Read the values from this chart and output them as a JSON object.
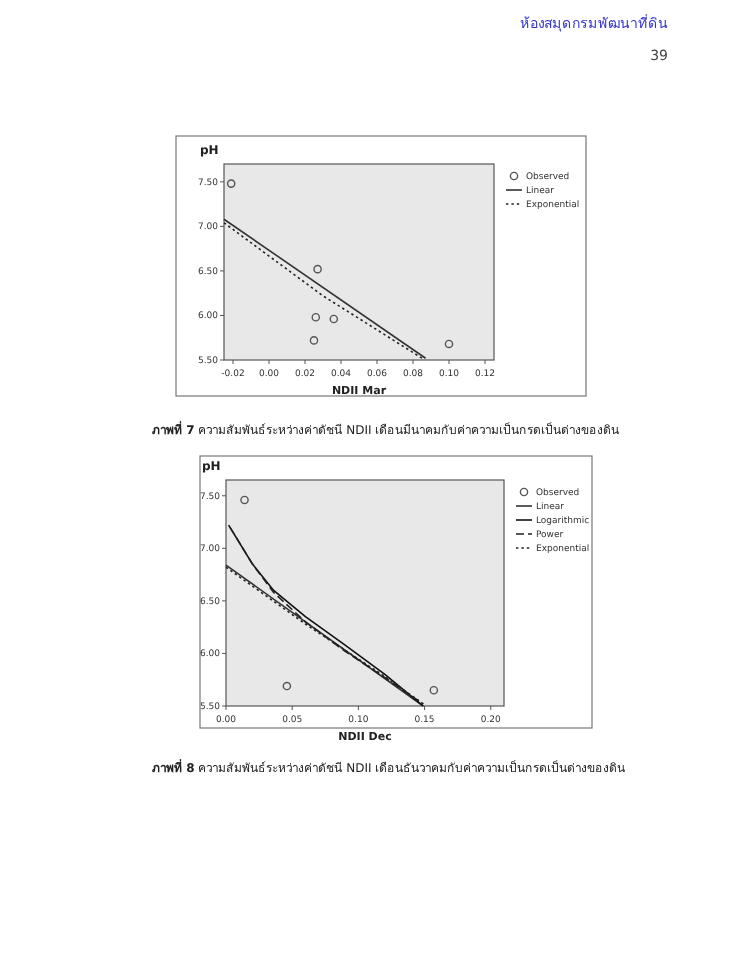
{
  "chart_data": [
    {
      "type": "scatter",
      "ylabel": "pH",
      "xlabel": "NDII Mar",
      "legend": "right",
      "annotations": [
        "ห้องสมุดกรมพัฒนาที่ดิน",
        "39",
        "ภาพที่ 7 ความสัมพันธ์ระหว่างค่าดัชนี NDII เดือนมีนาคมกับค่าความเป็นกรดเป็นด่างของดิน"
      ],
      "xlim": [
        -0.025,
        0.125
      ],
      "ylim": [
        5.5,
        7.7
      ],
      "xticks": [
        {
          "value": -0.02,
          "label": "-0.02"
        },
        {
          "value": 0,
          "label": "0.00"
        },
        {
          "value": 0.02,
          "label": "0.02"
        },
        {
          "value": 0.04,
          "label": "0.04"
        },
        {
          "value": 0.06,
          "label": "0.06"
        },
        {
          "value": 0.08,
          "label": "0.08"
        },
        {
          "value": 0.1,
          "label": "0.10"
        },
        {
          "value": 0.12,
          "label": "0.12"
        }
      ],
      "yticks": [
        {
          "value": 5.5,
          "label": "5.50"
        },
        {
          "value": 6,
          "label": "6.00"
        },
        {
          "value": 6.5,
          "label": "6.50"
        },
        {
          "value": 7,
          "label": "7.00"
        },
        {
          "value": 7.5,
          "label": "7.50"
        }
      ],
      "series": [
        {
          "name": "Observed",
          "marker": "circle",
          "color": "#555555",
          "x": [
            -0.021,
            0.027,
            0.026,
            0.036,
            0.025,
            0.1
          ],
          "values": [
            7.48,
            6.52,
            5.98,
            5.96,
            5.72,
            5.68
          ]
        },
        {
          "name": "Linear",
          "type": "line",
          "line_style": "solid",
          "color": "#333333",
          "x": [
            -0.025,
            0.087
          ],
          "values": [
            7.08,
            5.52
          ]
        },
        {
          "name": "Exponential",
          "type": "line",
          "line_style": "dotted",
          "color": "#222222",
          "x": [
            -0.025,
            0.03,
            0.085
          ],
          "values": [
            7.04,
            6.22,
            5.52
          ]
        }
      ]
    },
    {
      "type": "scatter",
      "ylabel": "pH",
      "xlabel": "NDII Dec",
      "legend": "right",
      "annotations": [
        "ภาพที่ 8 ความสัมพันธ์ระหว่างค่าดัชนี NDII เดือนธันวาคมกับค่าความเป็นกรดเป็นด่างของดิน"
      ],
      "xlim": [
        0,
        0.21
      ],
      "ylim": [
        5.5,
        7.65
      ],
      "xticks": [
        {
          "value": 0,
          "label": "0.00"
        },
        {
          "value": 0.05,
          "label": "0.05"
        },
        {
          "value": 0.1,
          "label": "0.10"
        },
        {
          "value": 0.15,
          "label": "0.15"
        },
        {
          "value": 0.2,
          "label": "0.20"
        }
      ],
      "yticks": [
        {
          "value": 5.5,
          "label": "5.50"
        },
        {
          "value": 6,
          "label": "6.00"
        },
        {
          "value": 6.5,
          "label": "6.50"
        },
        {
          "value": 7,
          "label": "7.00"
        },
        {
          "value": 7.5,
          "label": "7.50"
        }
      ],
      "series": [
        {
          "name": "Observed",
          "marker": "circle",
          "color": "#555555",
          "x": [
            0.014,
            0.046,
            0.157
          ],
          "values": [
            7.46,
            5.69,
            5.65
          ]
        },
        {
          "name": "Linear",
          "type": "line",
          "line_style": "solid",
          "color": "#333333",
          "x": [
            0,
            0.149
          ],
          "values": [
            6.84,
            5.5
          ]
        },
        {
          "name": "Logarithmic",
          "type": "line",
          "line_style": "solid",
          "color": "#111111",
          "x": [
            0.002,
            0.02,
            0.036,
            0.06,
            0.09,
            0.12,
            0.149
          ],
          "values": [
            7.22,
            6.85,
            6.6,
            6.35,
            6.08,
            5.8,
            5.5
          ]
        },
        {
          "name": "Power",
          "type": "line",
          "line_style": "dashed",
          "color": "#222222",
          "x": [
            0.003,
            0.02,
            0.036,
            0.06,
            0.09,
            0.12,
            0.149
          ],
          "values": [
            7.2,
            6.85,
            6.58,
            6.3,
            6.02,
            5.77,
            5.52
          ]
        },
        {
          "name": "Exponential",
          "type": "line",
          "line_style": "dotted",
          "color": "#222222",
          "x": [
            0,
            0.03,
            0.06,
            0.09,
            0.12,
            0.149
          ],
          "values": [
            6.82,
            6.55,
            6.28,
            6.03,
            5.78,
            5.52
          ]
        }
      ]
    }
  ]
}
